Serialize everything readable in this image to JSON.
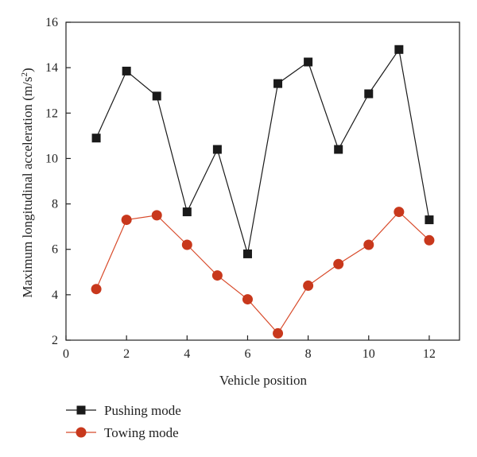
{
  "chart_data": {
    "type": "line",
    "xlabel": "Vehicle position",
    "ylabel": "Maximum longitudinal acceleration (m/s",
    "ylabel_sup": "2",
    "ylabel_close": ")",
    "xlim": [
      0,
      13
    ],
    "ylim": [
      2,
      16
    ],
    "xticks": [
      0,
      2,
      4,
      6,
      8,
      10,
      12
    ],
    "yticks": [
      2,
      4,
      6,
      8,
      10,
      12,
      14,
      16
    ],
    "x": [
      1,
      2,
      3,
      4,
      5,
      6,
      7,
      8,
      9,
      10,
      11,
      12
    ],
    "series": [
      {
        "name": "Pushing mode",
        "marker": "square",
        "line_color": "#1a1a1a",
        "marker_color": "#1a1a1a",
        "values": [
          10.9,
          13.85,
          12.75,
          7.65,
          10.4,
          5.8,
          13.3,
          14.25,
          10.4,
          12.85,
          14.8,
          7.3
        ]
      },
      {
        "name": "Towing mode",
        "marker": "circle",
        "line_color": "#d84a2a",
        "marker_color": "#c8381c",
        "values": [
          4.25,
          7.3,
          7.5,
          6.2,
          4.85,
          3.8,
          2.3,
          4.4,
          5.35,
          6.2,
          7.65,
          6.4
        ]
      }
    ],
    "grid": false,
    "legend_position": "bottom-left"
  }
}
